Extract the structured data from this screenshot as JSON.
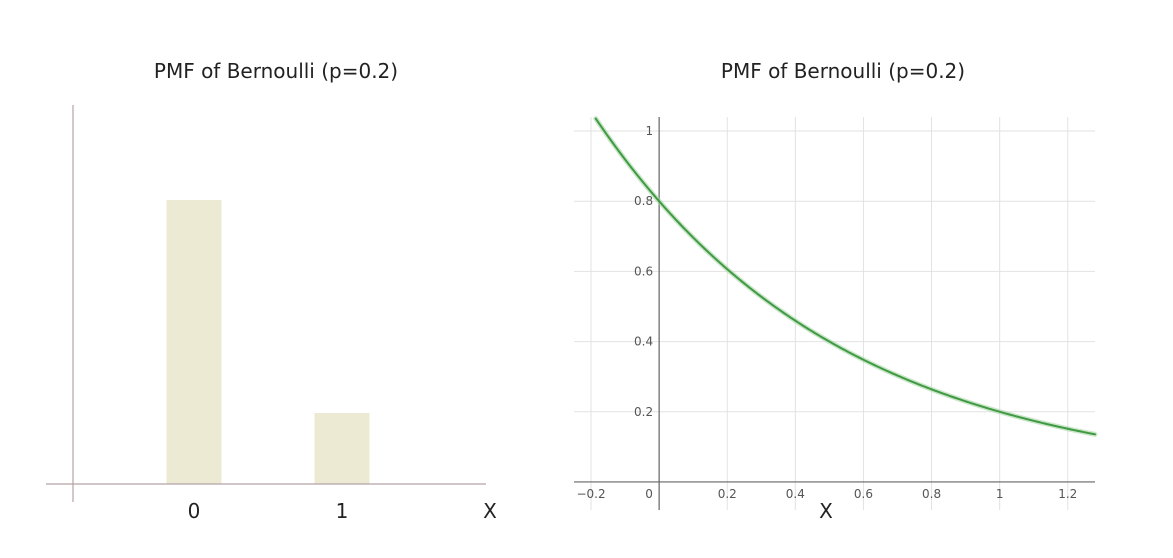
{
  "chart_data": [
    {
      "type": "bar",
      "title": "PMF of Bernoulli (p=0.2)",
      "xlabel": "X",
      "ylabel": "",
      "categories": [
        "0",
        "1"
      ],
      "values": [
        0.8,
        0.2
      ],
      "ylim": [
        0,
        1
      ],
      "grid": false,
      "bar_color": "#ecead2",
      "axis_color": "#b3a3a8"
    },
    {
      "type": "line",
      "title": "PMF of Bernoulli (p=0.2)",
      "xlabel": "X",
      "ylabel": "",
      "function": "0.8 * 0.25^x",
      "x": [
        -0.2,
        0,
        0.2,
        0.4,
        0.6,
        0.8,
        1,
        1.2,
        1.28
      ],
      "y": [
        1.056,
        0.8,
        0.606,
        0.459,
        0.348,
        0.264,
        0.2,
        0.152,
        0.135
      ],
      "xlim": [
        -0.25,
        1.28
      ],
      "ylim": [
        -0.08,
        1.04
      ],
      "xticks": [
        -0.2,
        0,
        0.2,
        0.4,
        0.6,
        0.8,
        1,
        1.2
      ],
      "xtick_labels": [
        "−0.2",
        "0",
        "0.2",
        "0.4",
        "0.6",
        "0.8",
        "1",
        "1.2"
      ],
      "yticks": [
        0.2,
        0.4,
        0.6,
        0.8,
        1
      ],
      "ytick_labels": [
        "0.2",
        "0.4",
        "0.6",
        "0.8",
        "1"
      ],
      "grid": true,
      "line_color": "#3f9a42",
      "grid_color": "#e2e2e2",
      "axis_color": "#666666"
    }
  ]
}
